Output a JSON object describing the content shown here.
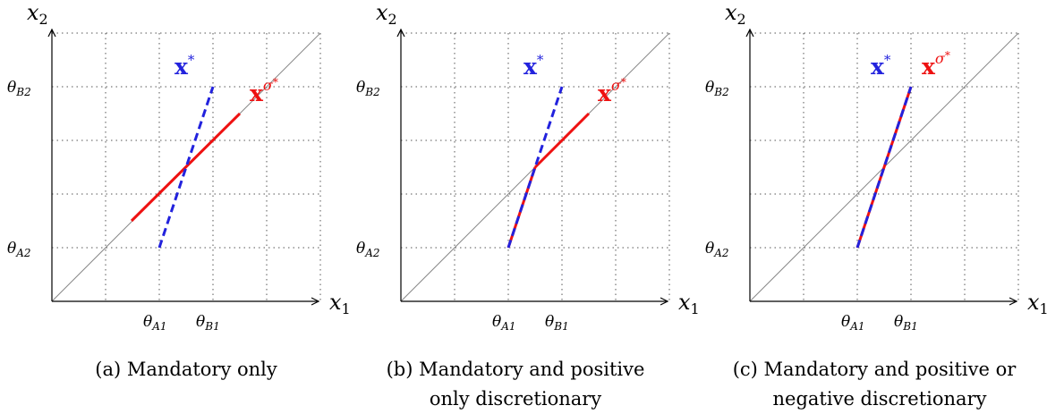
{
  "axes": {
    "x_symbol": "x",
    "x_sub": "1",
    "y_symbol": "x",
    "y_sub": "2"
  },
  "ticks": {
    "theta_symbol": "θ",
    "a1": "A1",
    "b1": "B1",
    "a2": "A2",
    "b2": "B2"
  },
  "labels": {
    "x_star_base": "x",
    "x_star_sup": "*",
    "x_sigma_base": "x",
    "x_sigma_sup": "σ",
    "x_sigma_supsup": "*"
  },
  "colors": {
    "x_star": "#2222dd",
    "x_sigma": "#ee1111",
    "grid": "#555555",
    "diagonal": "#888888"
  },
  "panels": [
    {
      "id": "a",
      "caption_line1": "(a) Mandatory only",
      "caption_line2": ""
    },
    {
      "id": "b",
      "caption_line1": "(b) Mandatory and positive",
      "caption_line2": "only discretionary"
    },
    {
      "id": "c",
      "caption_line1": "(c) Mandatory and positive or",
      "caption_line2": "negative discretionary"
    }
  ]
}
